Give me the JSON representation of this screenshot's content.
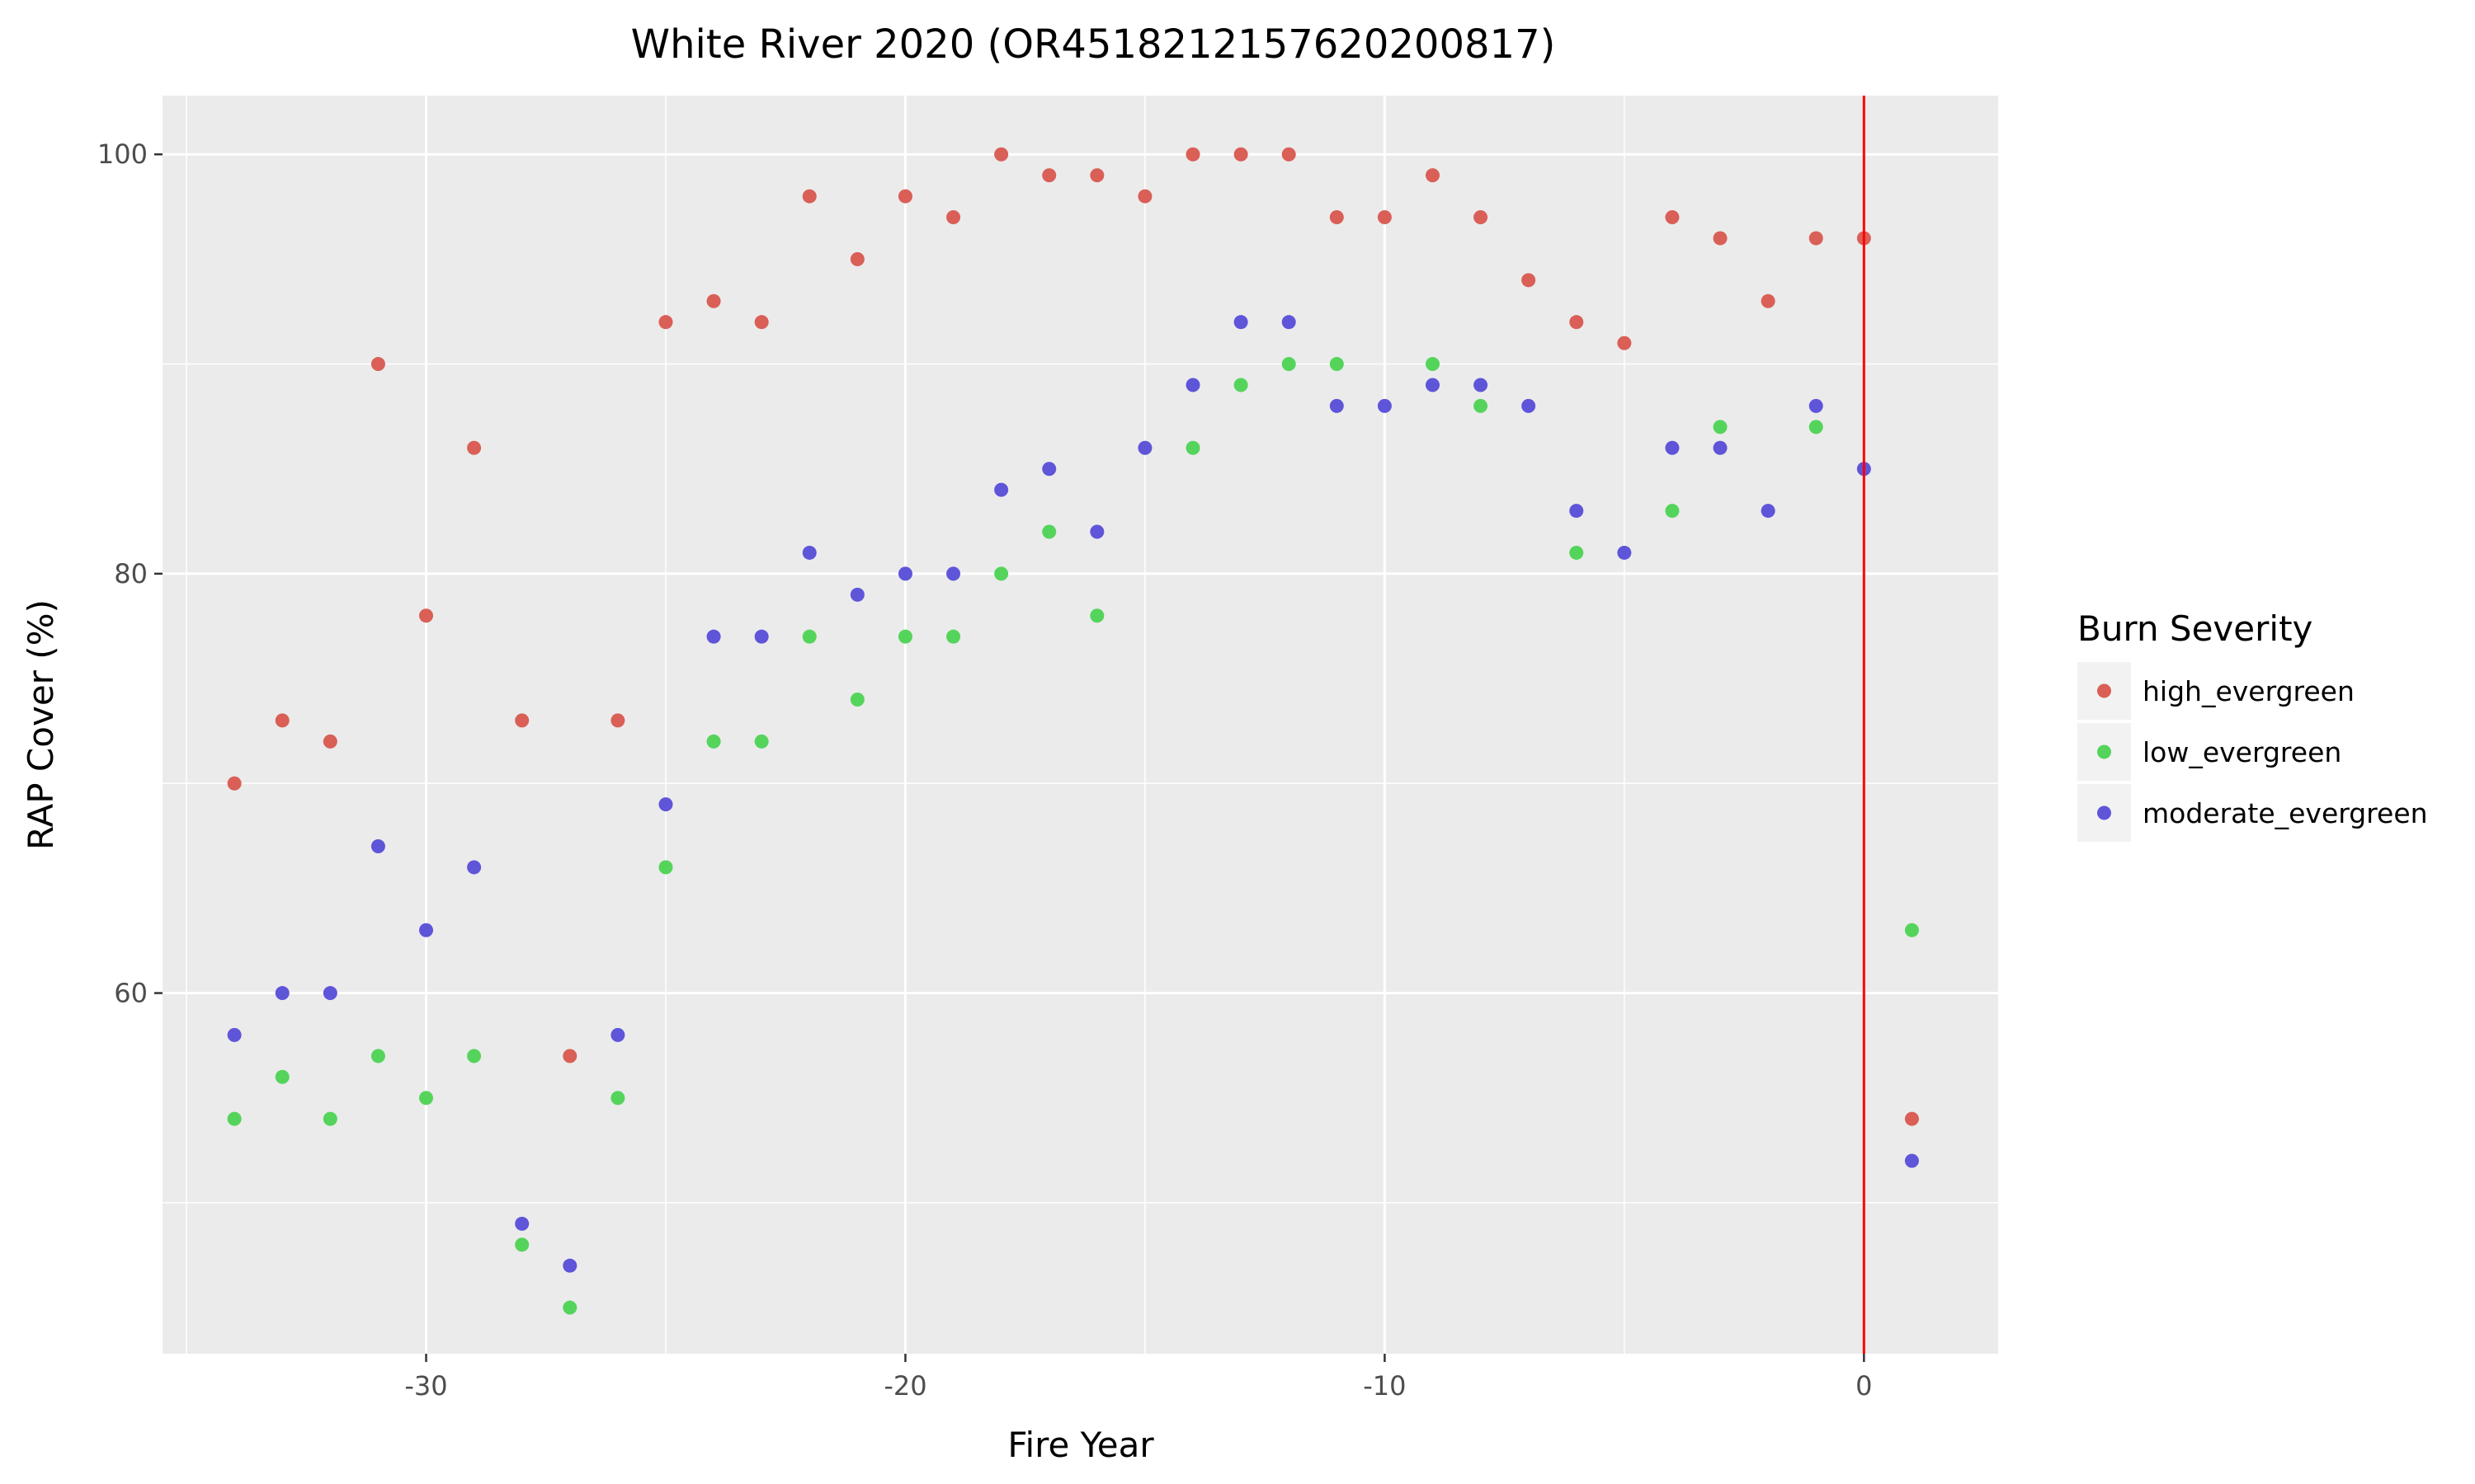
{
  "chart_data": {
    "type": "scatter",
    "title": "White River 2020 (OR4518212157620200817)",
    "xlabel": "Fire Year",
    "ylabel": "RAP Cover (%)",
    "xlim": [
      -35.5,
      2.8
    ],
    "ylim": [
      42.8,
      102.8
    ],
    "x_ticks": [
      -30,
      -20,
      -10,
      0
    ],
    "x_tick_labels": [
      "-30",
      "-20",
      "-10",
      "0"
    ],
    "y_ticks": [
      60,
      80,
      100
    ],
    "y_tick_labels": [
      "60",
      "80",
      "100"
    ],
    "x_minor_ticks": [
      -35,
      -25,
      -15,
      -5
    ],
    "y_minor_ticks": [
      50,
      70,
      90
    ],
    "grid": true,
    "background": "#ebebeb",
    "reference_line": {
      "x": 0,
      "color": "#ff0000"
    },
    "legend": {
      "title": "Burn Severity",
      "position": "right"
    },
    "series": [
      {
        "name": "high_evergreen",
        "color": "#d95f57",
        "x": [
          -34,
          -33,
          -32,
          -31,
          -30,
          -29,
          -28,
          -27,
          -26,
          -25,
          -24,
          -23,
          -22,
          -21,
          -20,
          -19,
          -18,
          -17,
          -16,
          -15,
          -14,
          -13,
          -12,
          -11,
          -10,
          -9,
          -8,
          -7,
          -6,
          -5,
          -4,
          -3,
          -2,
          -1,
          0,
          1
        ],
        "y": [
          70,
          73,
          72,
          90,
          78,
          86,
          73,
          57,
          73,
          92,
          93,
          92,
          98,
          95,
          98,
          97,
          100,
          99,
          99,
          98,
          100,
          100,
          100,
          97,
          97,
          99,
          97,
          94,
          92,
          91,
          97,
          96,
          93,
          96,
          96,
          54
        ]
      },
      {
        "name": "low_evergreen",
        "color": "#55d45b",
        "x": [
          -34,
          -33,
          -32,
          -31,
          -30,
          -29,
          -28,
          -27,
          -26,
          -25,
          -24,
          -23,
          -22,
          -21,
          -20,
          -19,
          -18,
          -17,
          -16,
          -14,
          -13,
          -12,
          -11,
          -9,
          -8,
          -6,
          -4,
          -3,
          -1,
          1
        ],
        "y": [
          54,
          56,
          54,
          57,
          55,
          57,
          48,
          45,
          55,
          66,
          72,
          72,
          77,
          74,
          77,
          77,
          80,
          82,
          78,
          86,
          89,
          90,
          90,
          90,
          88,
          81,
          83,
          87,
          87,
          63
        ]
      },
      {
        "name": "moderate_evergreen",
        "color": "#5f55d9",
        "x": [
          -34,
          -33,
          -32,
          -31,
          -30,
          -29,
          -28,
          -27,
          -26,
          -25,
          -24,
          -23,
          -22,
          -21,
          -20,
          -19,
          -18,
          -17,
          -16,
          -15,
          -14,
          -13,
          -12,
          -11,
          -10,
          -9,
          -8,
          -7,
          -6,
          -5,
          -4,
          -3,
          -2,
          -1,
          0,
          1
        ],
        "y": [
          58,
          60,
          60,
          67,
          63,
          66,
          49,
          47,
          58,
          69,
          77,
          77,
          81,
          79,
          80,
          80,
          84,
          85,
          82,
          86,
          89,
          92,
          92,
          88,
          88,
          89,
          89,
          88,
          83,
          81,
          86,
          86,
          83,
          88,
          85,
          52
        ]
      }
    ]
  }
}
